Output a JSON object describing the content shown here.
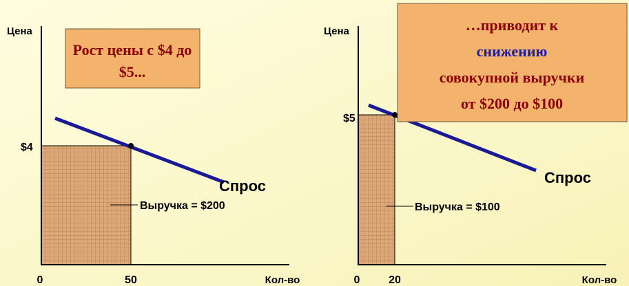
{
  "panels": [
    {
      "price_label": "Цена",
      "quantity_label": "Кол-во",
      "price_tick": "$4",
      "origin_tick": "0",
      "quantity_tick": "50",
      "demand_label": "Спрос",
      "revenue_label": "Выручка = $200",
      "callout": [
        "Рост цены с $4 до",
        "$5..."
      ]
    },
    {
      "price_label": "Цена",
      "quantity_label": "Кол-во",
      "price_tick": "$5",
      "origin_tick": "0",
      "quantity_tick": "20",
      "demand_label": "Спрос",
      "revenue_label": "Выручка = $100",
      "callout": [
        "…приводит к",
        "снижению",
        "совокупной выручки",
        "от $200 до $100"
      ]
    }
  ]
}
